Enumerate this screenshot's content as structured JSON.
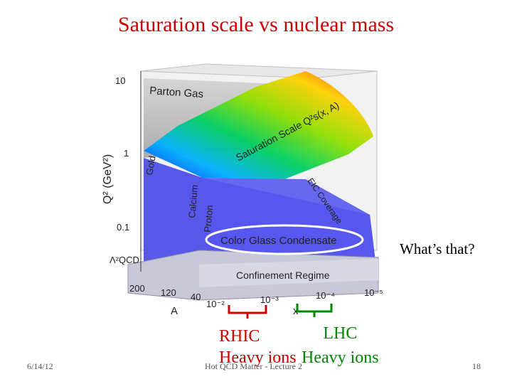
{
  "slide": {
    "title": "Saturation scale vs nuclear mass",
    "side_note": "What’s that?",
    "rhic_label": "RHIC",
    "lhc_label": "LHC",
    "rhic_sub": "Heavy ions",
    "lhc_sub": "Heavy ions",
    "footer_date": "6/14/12",
    "footer_title": "Hot QCD Matter - Lecture 2",
    "page_number": "18"
  },
  "figure": {
    "y_axis_label": "Q² (GeV²)",
    "y_ticks": [
      "10",
      "1",
      "0.1"
    ],
    "lambda_label": "Λ²QCD",
    "a_axis_label": "A",
    "a_ticks": [
      "200",
      "120",
      "40"
    ],
    "x_axis_label": "x",
    "x_ticks": [
      "10⁻²",
      "10⁻³",
      "10⁻⁴",
      "10⁻⁵"
    ],
    "regions": {
      "parton_gas": "Parton Gas",
      "saturation_scale": "Saturation Scale Q²s(x, A)",
      "gold": "Gold",
      "calcium": "Calcium",
      "proton": "Proton",
      "eic_coverage": "EIC Coverage",
      "cgc": "Color Glass Condensate",
      "confinement": "Confinement Regime"
    },
    "colors": {
      "rhic": "#cc0000",
      "lhc": "#008800",
      "cgc_region": "#4a4ae8",
      "parton_gas": "#b8b8b8"
    }
  }
}
